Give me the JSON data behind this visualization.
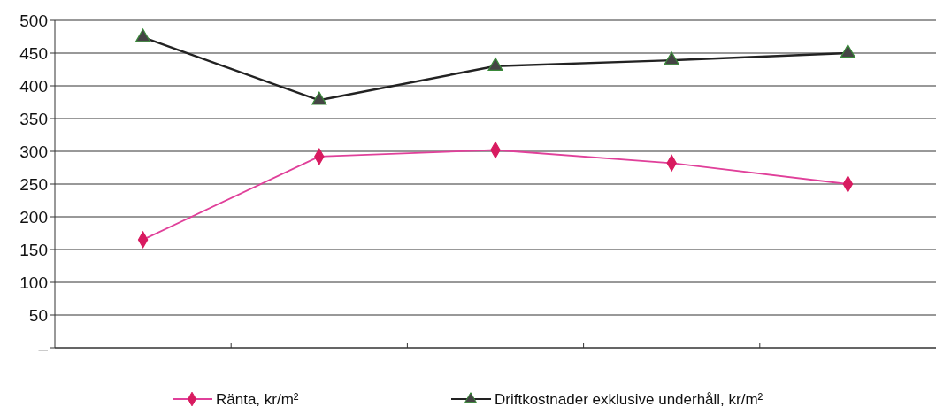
{
  "chart_data": {
    "type": "line",
    "categories": [
      null,
      null,
      null,
      null,
      null
    ],
    "series": [
      {
        "name": "Ränta, kr/m²",
        "color": "#e0409a",
        "values": [
          165,
          292,
          302,
          282,
          250
        ],
        "marker": "diamond"
      },
      {
        "name": "Driftkostnader exklusive underhåll, kr/m²",
        "color": "#222222",
        "values": [
          474,
          378,
          430,
          439,
          450
        ],
        "marker": "triangle"
      }
    ],
    "ylim": [
      0,
      500
    ],
    "yticks": [
      {
        "value": 0,
        "label": "–"
      },
      50,
      100,
      150,
      200,
      250,
      300,
      350,
      400,
      450,
      500
    ],
    "grid": "y",
    "legend": "bottom",
    "line_style": "solid"
  }
}
